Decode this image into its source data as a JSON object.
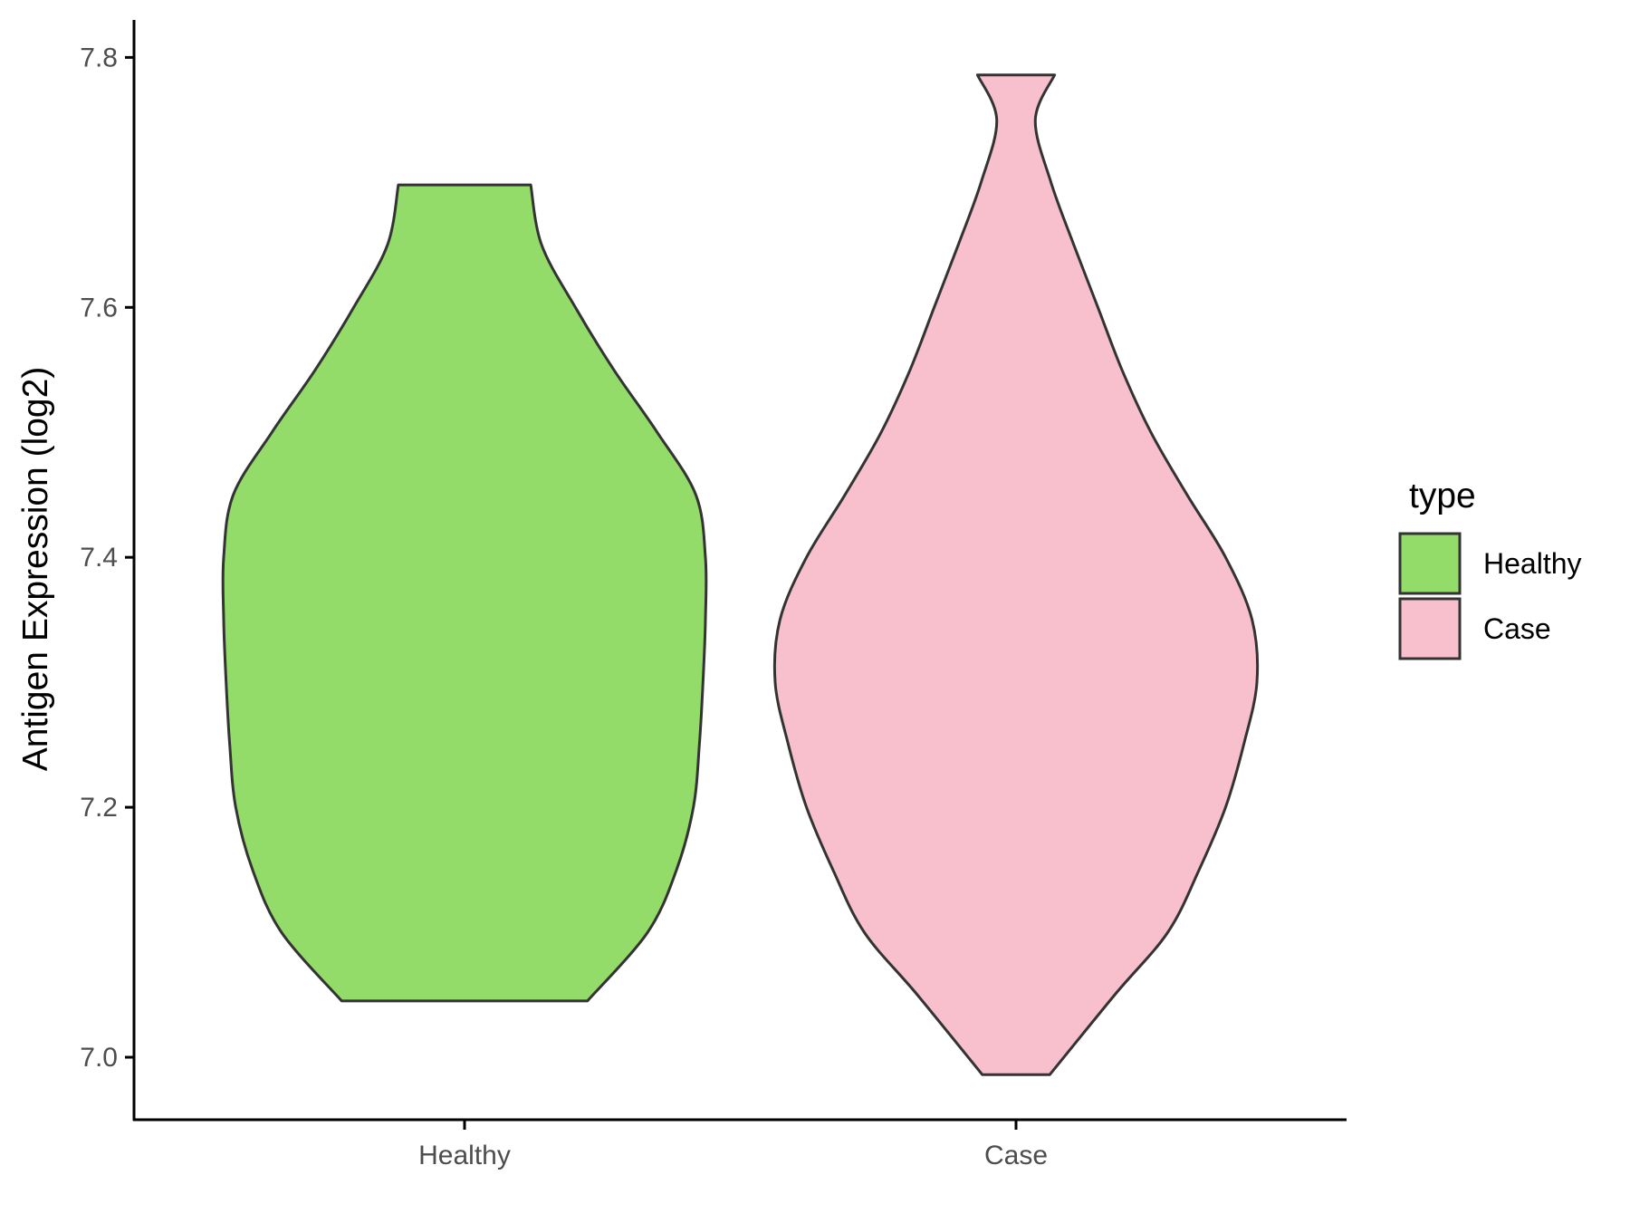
{
  "chart_data": {
    "type": "violin",
    "title": "",
    "xlabel": "",
    "ylabel": "Antigen Expression (log2)",
    "ylim": [
      6.95,
      7.83
    ],
    "yticks": [
      7.0,
      7.2,
      7.4,
      7.6,
      7.8
    ],
    "ytick_labels": [
      "7.0",
      "7.2",
      "7.4",
      "7.6",
      "7.8"
    ],
    "categories": [
      "Healthy",
      "Case"
    ],
    "grid": false,
    "legend": {
      "title": "type",
      "position": "right",
      "entries": [
        {
          "label": "Healthy",
          "color": "#93dc6a"
        },
        {
          "label": "Case",
          "color": "#f7c0cc"
        }
      ]
    },
    "series": [
      {
        "name": "Healthy",
        "color": "#93dc6a",
        "min": 7.045,
        "max": 7.698,
        "density_profile": [
          [
            7.045,
            0.51
          ],
          [
            7.1,
            0.76
          ],
          [
            7.15,
            0.88
          ],
          [
            7.2,
            0.95
          ],
          [
            7.25,
            0.975
          ],
          [
            7.3,
            0.99
          ],
          [
            7.35,
            1.0
          ],
          [
            7.4,
            1.0
          ],
          [
            7.45,
            0.96
          ],
          [
            7.5,
            0.8
          ],
          [
            7.55,
            0.62
          ],
          [
            7.6,
            0.46
          ],
          [
            7.65,
            0.32
          ],
          [
            7.698,
            0.275
          ]
        ]
      },
      {
        "name": "Case",
        "color": "#f7c0cc",
        "min": 6.986,
        "max": 7.786,
        "density_profile": [
          [
            6.986,
            0.14
          ],
          [
            7.05,
            0.41
          ],
          [
            7.1,
            0.63
          ],
          [
            7.15,
            0.76
          ],
          [
            7.2,
            0.87
          ],
          [
            7.25,
            0.945
          ],
          [
            7.3,
            1.0
          ],
          [
            7.35,
            0.98
          ],
          [
            7.4,
            0.87
          ],
          [
            7.45,
            0.71
          ],
          [
            7.5,
            0.56
          ],
          [
            7.55,
            0.44
          ],
          [
            7.6,
            0.34
          ],
          [
            7.65,
            0.24
          ],
          [
            7.7,
            0.145
          ],
          [
            7.75,
            0.08
          ],
          [
            7.786,
            0.16
          ]
        ]
      }
    ]
  }
}
